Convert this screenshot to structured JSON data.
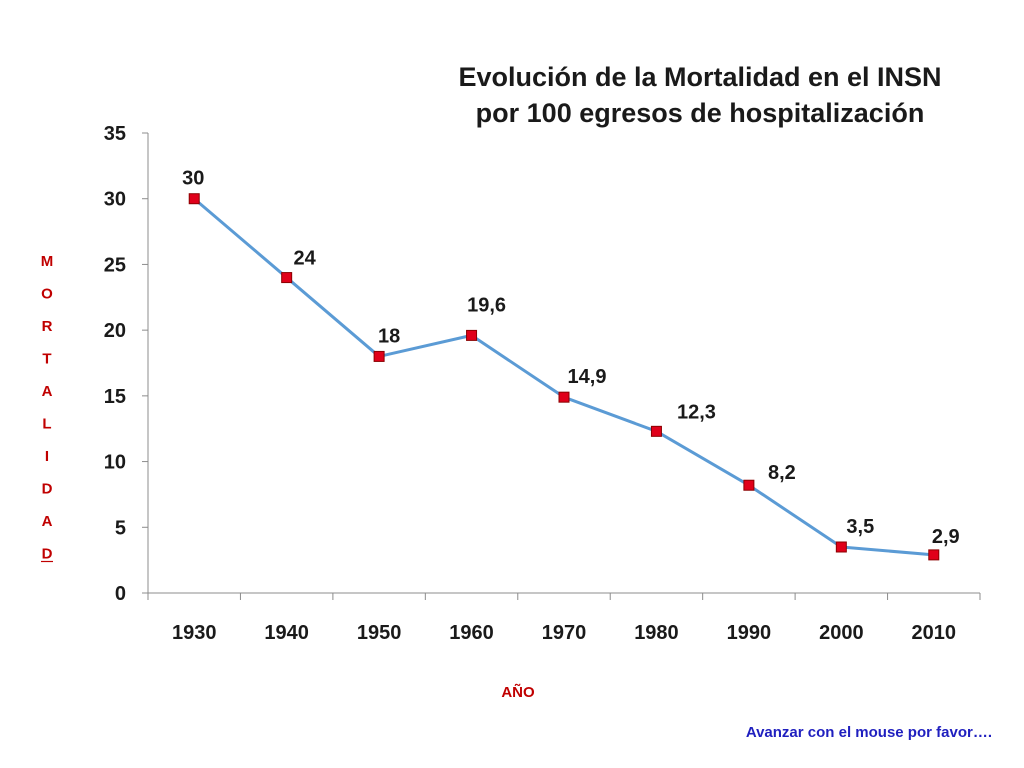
{
  "chart_data": {
    "type": "line",
    "title": [
      "Evolución de la Mortalidad en el INSN",
      "por 100 egresos de hospitalización"
    ],
    "xlabel": "AÑO",
    "ylabel": "MORTALIDAD",
    "categories": [
      "1930",
      "1940",
      "1950",
      "1960",
      "1970",
      "1980",
      "1990",
      "2000",
      "2010"
    ],
    "series": [
      {
        "values": [
          30,
          24,
          18,
          19.6,
          14.9,
          12.3,
          8.2,
          3.5,
          2.9
        ],
        "data_labels": [
          "30",
          "24",
          "18",
          "19,6",
          "14,9",
          "12,3",
          "8,2",
          "3,5",
          "2,9"
        ]
      }
    ],
    "ylim": [
      0,
      35
    ],
    "yticks": [
      0,
      5,
      10,
      15,
      20,
      25,
      30,
      35
    ],
    "grid": false,
    "legend": "none",
    "colors": {
      "line": "#5b9bd5",
      "marker": "#e0001a",
      "marker_border": "#8b0000",
      "axis_labels": "#c00000",
      "note": "#1f1fbf"
    }
  },
  "footer": {
    "note": "Avanzar con el mouse por favor…."
  }
}
